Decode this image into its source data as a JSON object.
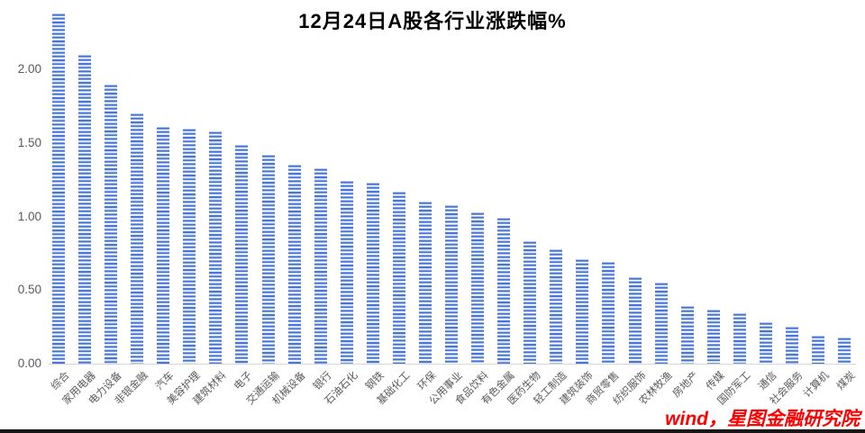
{
  "page": {
    "title": "12月24日A股各行业涨跌幅%",
    "watermark": "wind，星图金融研究院"
  },
  "chart_data": {
    "type": "bar",
    "title": "12月24日A股各行业涨跌幅%",
    "categories": [
      "综合",
      "家用电器",
      "电力设备",
      "非银金融",
      "汽车",
      "美容护理",
      "建筑材料",
      "电子",
      "交通运输",
      "机械设备",
      "银行",
      "石油石化",
      "钢铁",
      "基础化工",
      "环保",
      "公用事业",
      "食品饮料",
      "有色金属",
      "医药生物",
      "轻工制造",
      "建筑装饰",
      "商贸零售",
      "纺织服饰",
      "农林牧渔",
      "房地产",
      "传媒",
      "国防军工",
      "通信",
      "社会服务",
      "计算机",
      "煤炭"
    ],
    "values": [
      2.38,
      2.1,
      1.9,
      1.7,
      1.61,
      1.6,
      1.58,
      1.49,
      1.42,
      1.35,
      1.33,
      1.24,
      1.23,
      1.17,
      1.1,
      1.08,
      1.03,
      0.99,
      0.83,
      0.78,
      0.71,
      0.69,
      0.59,
      0.55,
      0.39,
      0.37,
      0.34,
      0.28,
      0.25,
      0.19,
      0.18
    ],
    "xlabel": "",
    "ylabel": "",
    "ylim": [
      0,
      2.42
    ],
    "yticks": [
      "0.00",
      "0.50",
      "1.00",
      "1.50",
      "2.00"
    ],
    "ytick_values": [
      0,
      0.5,
      1.0,
      1.5,
      2.0
    ],
    "grid": false,
    "legend_position": "none",
    "bar_color": "#4a74d8",
    "bar_pattern": "horizontal-dashes",
    "axis_label_color": "#595959",
    "title_color": "#000000",
    "watermark_text": "wind，星图金融研究院",
    "watermark_color": "#fe0000"
  }
}
